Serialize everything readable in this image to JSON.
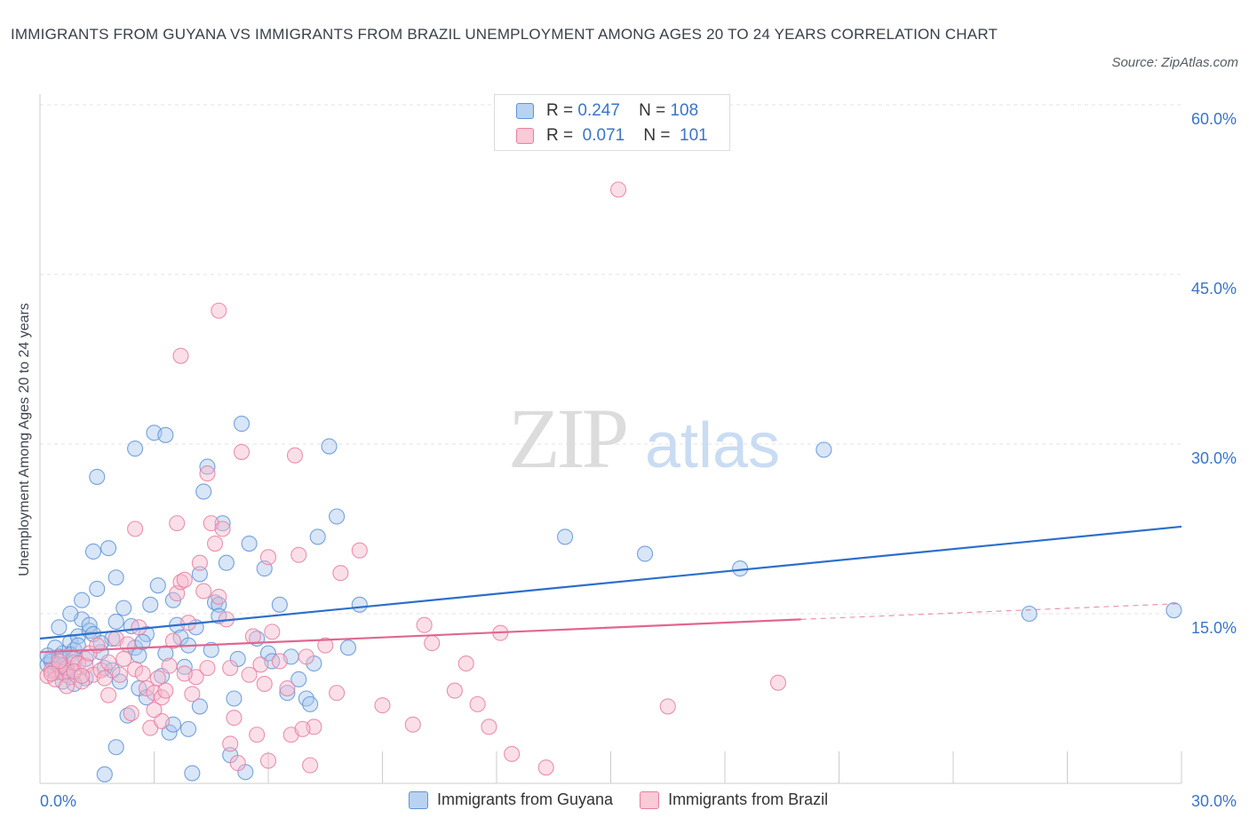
{
  "title": "IMMIGRANTS FROM GUYANA VS IMMIGRANTS FROM BRAZIL UNEMPLOYMENT AMONG AGES 20 TO 24 YEARS CORRELATION CHART",
  "source": "Source: ZipAtlas.com",
  "watermark": {
    "zip": "ZIP",
    "atlas": "atlas"
  },
  "legend": {
    "rows": [
      {
        "r_label": "R =",
        "r_value": "0.247",
        "n_label": "N =",
        "n_value": "108"
      },
      {
        "r_label": "R =",
        "r_value": "0.071",
        "n_label": "N =",
        "n_value": "101"
      }
    ]
  },
  "colors": {
    "guyana_fill": "#a9c7ee",
    "guyana_stroke": "#5f93d6",
    "guyana_line": "#2c6fcc",
    "brazil_fill": "#f6b9cb",
    "brazil_stroke": "#e67fa0",
    "brazil_line": "#e0678f",
    "axis_label": "#3a74c9",
    "grid": "#e3e3e3"
  },
  "chart_data": {
    "type": "scatter",
    "title": "IMMIGRANTS FROM GUYANA VS IMMIGRANTS FROM BRAZIL UNEMPLOYMENT AMONG AGES 20 TO 24 YEARS CORRELATION CHART",
    "xlabel": "",
    "ylabel": "Unemployment Among Ages 20 to 24 years",
    "xlim": [
      0,
      30
    ],
    "ylim": [
      0,
      60
    ],
    "x_tick_labels": [
      "0.0%",
      "30.0%"
    ],
    "y_tick_labels": [
      "15.0%",
      "30.0%",
      "45.0%",
      "60.0%"
    ],
    "y_ticks": [
      15,
      30,
      45,
      60
    ],
    "grid": true,
    "legend_placement": "bottom",
    "series": [
      {
        "name": "Immigrants from Guyana",
        "r": 0.247,
        "n": 108,
        "trend": {
          "x": [
            0,
            30
          ],
          "y": [
            12.8,
            22.7
          ]
        },
        "points": [
          [
            0.2,
            10.5
          ],
          [
            0.3,
            11.0
          ],
          [
            0.4,
            9.8
          ],
          [
            0.5,
            10.2
          ],
          [
            0.6,
            11.5
          ],
          [
            0.7,
            10.0
          ],
          [
            0.8,
            12.5
          ],
          [
            0.9,
            11.8
          ],
          [
            1.0,
            13.0
          ],
          [
            1.1,
            14.5
          ],
          [
            0.3,
            10.8
          ],
          [
            0.4,
            12.0
          ],
          [
            0.5,
            11.2
          ],
          [
            0.6,
            10.4
          ],
          [
            0.7,
            9.6
          ],
          [
            0.8,
            11.4
          ],
          [
            0.9,
            10.7
          ],
          [
            1.0,
            12.2
          ],
          [
            1.2,
            11.0
          ],
          [
            1.3,
            13.5
          ],
          [
            0.2,
            11.3
          ],
          [
            0.5,
            13.8
          ],
          [
            0.8,
            15.0
          ],
          [
            1.1,
            16.2
          ],
          [
            1.3,
            14.0
          ],
          [
            1.4,
            13.2
          ],
          [
            1.6,
            11.6
          ],
          [
            1.7,
            10.2
          ],
          [
            1.9,
            12.8
          ],
          [
            2.0,
            14.3
          ],
          [
            1.5,
            17.2
          ],
          [
            1.8,
            20.8
          ],
          [
            2.0,
            18.2
          ],
          [
            2.2,
            15.5
          ],
          [
            2.4,
            13.9
          ],
          [
            2.5,
            12.0
          ],
          [
            2.6,
            11.3
          ],
          [
            2.8,
            13.2
          ],
          [
            2.9,
            15.8
          ],
          [
            3.1,
            17.5
          ],
          [
            1.4,
            20.5
          ],
          [
            1.5,
            27.1
          ],
          [
            2.5,
            29.6
          ],
          [
            3.0,
            31.0
          ],
          [
            3.3,
            30.8
          ],
          [
            3.5,
            16.2
          ],
          [
            3.6,
            14.0
          ],
          [
            3.7,
            12.9
          ],
          [
            3.8,
            10.3
          ],
          [
            3.9,
            12.2
          ],
          [
            4.1,
            13.8
          ],
          [
            4.2,
            18.5
          ],
          [
            4.3,
            25.8
          ],
          [
            4.4,
            28.0
          ],
          [
            4.5,
            11.8
          ],
          [
            4.6,
            16.0
          ],
          [
            4.7,
            15.8
          ],
          [
            4.8,
            23.0
          ],
          [
            4.9,
            19.5
          ],
          [
            5.1,
            7.5
          ],
          [
            5.3,
            31.8
          ],
          [
            5.5,
            21.2
          ],
          [
            5.7,
            12.8
          ],
          [
            5.9,
            19.0
          ],
          [
            6.0,
            11.5
          ],
          [
            6.1,
            10.8
          ],
          [
            6.3,
            15.8
          ],
          [
            6.5,
            8.0
          ],
          [
            6.8,
            9.2
          ],
          [
            7.0,
            7.5
          ],
          [
            7.2,
            10.6
          ],
          [
            7.3,
            21.8
          ],
          [
            7.6,
            29.8
          ],
          [
            7.8,
            23.6
          ],
          [
            8.1,
            12.0
          ],
          [
            8.4,
            15.8
          ],
          [
            2.3,
            6.0
          ],
          [
            2.6,
            8.4
          ],
          [
            2.8,
            7.6
          ],
          [
            3.2,
            9.5
          ],
          [
            3.4,
            4.5
          ],
          [
            3.9,
            4.8
          ],
          [
            4.0,
            0.9
          ],
          [
            2.0,
            3.2
          ],
          [
            1.7,
            0.8
          ],
          [
            5.4,
            1.0
          ],
          [
            5.0,
            2.5
          ],
          [
            4.2,
            6.8
          ],
          [
            3.5,
            5.2
          ],
          [
            2.1,
            9.0
          ],
          [
            1.9,
            10.0
          ],
          [
            1.2,
            9.3
          ],
          [
            0.6,
            9.0
          ],
          [
            0.9,
            8.8
          ],
          [
            2.7,
            12.5
          ],
          [
            3.3,
            11.5
          ],
          [
            4.7,
            14.8
          ],
          [
            5.2,
            11.0
          ],
          [
            6.6,
            11.2
          ],
          [
            7.1,
            7.0
          ],
          [
            13.8,
            21.8
          ],
          [
            15.9,
            20.3
          ],
          [
            18.4,
            19.0
          ],
          [
            20.6,
            29.5
          ],
          [
            26.0,
            15.0
          ],
          [
            29.8,
            15.3
          ],
          [
            0.4,
            10.1
          ],
          [
            1.6,
            12.4
          ]
        ]
      },
      {
        "name": "Immigrants from Brazil",
        "r": 0.071,
        "n": 101,
        "trend": {
          "x": [
            0,
            20
          ],
          "y": [
            11.6,
            14.5
          ]
        },
        "trend_dashed": {
          "x": [
            20,
            30
          ],
          "y": [
            14.5,
            15.9
          ]
        },
        "points": [
          [
            0.2,
            9.5
          ],
          [
            0.3,
            10.0
          ],
          [
            0.4,
            9.2
          ],
          [
            0.5,
            10.5
          ],
          [
            0.6,
            9.8
          ],
          [
            0.7,
            10.2
          ],
          [
            0.8,
            9.4
          ],
          [
            0.9,
            11.0
          ],
          [
            1.0,
            10.6
          ],
          [
            1.1,
            9.0
          ],
          [
            0.3,
            9.7
          ],
          [
            0.5,
            10.8
          ],
          [
            0.7,
            8.6
          ],
          [
            0.9,
            9.9
          ],
          [
            1.2,
            10.4
          ],
          [
            1.3,
            11.5
          ],
          [
            1.4,
            9.6
          ],
          [
            1.5,
            12.2
          ],
          [
            1.6,
            10.0
          ],
          [
            1.7,
            9.3
          ],
          [
            1.8,
            10.7
          ],
          [
            2.0,
            12.8
          ],
          [
            2.2,
            11.0
          ],
          [
            2.3,
            12.3
          ],
          [
            2.5,
            10.1
          ],
          [
            2.6,
            13.8
          ],
          [
            2.7,
            9.7
          ],
          [
            2.8,
            8.4
          ],
          [
            3.0,
            8.0
          ],
          [
            3.1,
            9.3
          ],
          [
            3.2,
            7.6
          ],
          [
            3.3,
            8.2
          ],
          [
            3.4,
            10.4
          ],
          [
            3.5,
            12.6
          ],
          [
            3.6,
            16.8
          ],
          [
            3.7,
            17.8
          ],
          [
            3.8,
            18.0
          ],
          [
            3.9,
            14.2
          ],
          [
            4.0,
            7.9
          ],
          [
            4.1,
            9.4
          ],
          [
            4.2,
            19.5
          ],
          [
            4.3,
            17.0
          ],
          [
            4.4,
            27.4
          ],
          [
            4.5,
            23.0
          ],
          [
            4.6,
            21.2
          ],
          [
            4.7,
            16.5
          ],
          [
            4.8,
            22.5
          ],
          [
            4.9,
            14.5
          ],
          [
            5.0,
            10.2
          ],
          [
            5.1,
            5.8
          ],
          [
            5.3,
            29.3
          ],
          [
            5.5,
            9.6
          ],
          [
            5.6,
            13.0
          ],
          [
            5.8,
            10.5
          ],
          [
            5.9,
            8.8
          ],
          [
            6.0,
            20.0
          ],
          [
            6.1,
            13.4
          ],
          [
            6.3,
            10.8
          ],
          [
            6.5,
            8.4
          ],
          [
            6.7,
            29.0
          ],
          [
            6.8,
            20.2
          ],
          [
            7.0,
            11.2
          ],
          [
            7.2,
            5.0
          ],
          [
            7.5,
            12.2
          ],
          [
            7.8,
            8.0
          ],
          [
            7.9,
            18.6
          ],
          [
            8.4,
            20.6
          ],
          [
            9.0,
            6.9
          ],
          [
            9.8,
            5.2
          ],
          [
            10.1,
            14.0
          ],
          [
            10.3,
            12.4
          ],
          [
            10.9,
            8.2
          ],
          [
            11.2,
            10.6
          ],
          [
            11.5,
            7.0
          ],
          [
            11.8,
            5.0
          ],
          [
            12.1,
            13.3
          ],
          [
            12.4,
            2.6
          ],
          [
            13.3,
            1.4
          ],
          [
            15.2,
            52.5
          ],
          [
            16.5,
            6.8
          ],
          [
            19.4,
            8.9
          ],
          [
            3.7,
            37.8
          ],
          [
            4.7,
            41.8
          ],
          [
            2.5,
            22.5
          ],
          [
            3.6,
            23.0
          ],
          [
            1.8,
            7.8
          ],
          [
            2.4,
            6.2
          ],
          [
            2.9,
            4.9
          ],
          [
            3.2,
            5.5
          ],
          [
            3.0,
            6.5
          ],
          [
            5.0,
            3.5
          ],
          [
            5.2,
            1.8
          ],
          [
            5.7,
            4.3
          ],
          [
            6.0,
            2.0
          ],
          [
            6.6,
            4.3
          ],
          [
            7.1,
            1.6
          ],
          [
            6.9,
            4.8
          ],
          [
            4.4,
            10.2
          ],
          [
            3.8,
            9.7
          ],
          [
            2.1,
            9.6
          ],
          [
            1.1,
            9.5
          ]
        ]
      }
    ]
  }
}
